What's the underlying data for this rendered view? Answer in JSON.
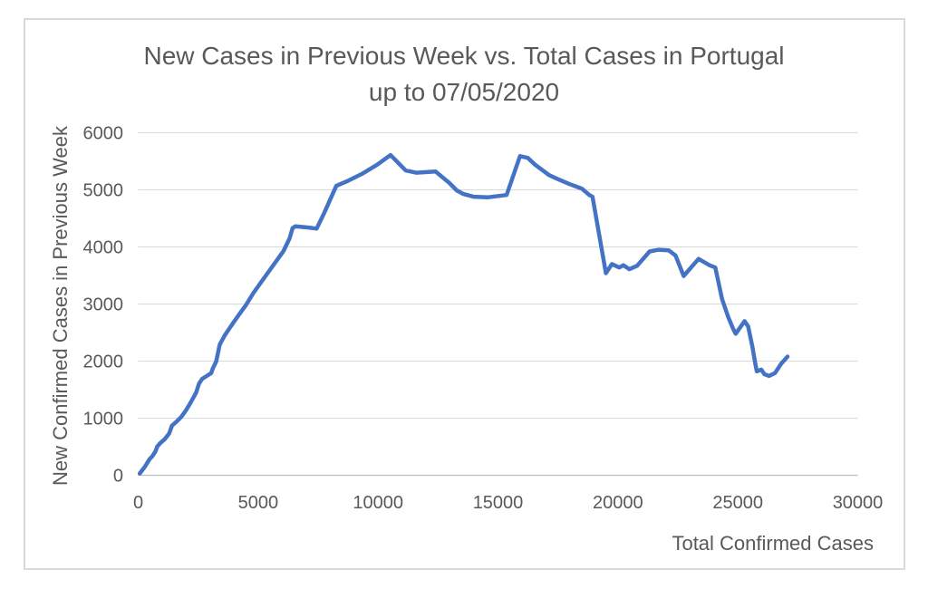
{
  "chart_data": {
    "type": "line",
    "title": "New Cases in Previous Week vs. Total Cases in Portugal",
    "subtitle": "up to 07/05/2020",
    "xlabel": "Total Confirmed Cases",
    "ylabel": "New Confirmed Cases in Previous Week",
    "xlim": [
      0,
      30000
    ],
    "ylim": [
      0,
      6000
    ],
    "xticks": [
      0,
      5000,
      10000,
      15000,
      20000,
      25000,
      30000
    ],
    "yticks": [
      0,
      1000,
      2000,
      3000,
      4000,
      5000,
      6000
    ],
    "grid": "horizontal",
    "legend": "none",
    "colors": {
      "line": "#4472C4",
      "grid": "#D9D9D9",
      "axis": "#BFBFBF",
      "text": "#595959",
      "frame_border": "#D9D9D9"
    },
    "series": [
      {
        "name": "New confirmed cases in previous week",
        "points": [
          [
            60,
            30
          ],
          [
            280,
            150
          ],
          [
            470,
            280
          ],
          [
            600,
            340
          ],
          [
            720,
            420
          ],
          [
            790,
            500
          ],
          [
            910,
            560
          ],
          [
            1100,
            630
          ],
          [
            1290,
            730
          ],
          [
            1410,
            870
          ],
          [
            1600,
            940
          ],
          [
            1790,
            1020
          ],
          [
            1980,
            1130
          ],
          [
            2170,
            1260
          ],
          [
            2420,
            1450
          ],
          [
            2540,
            1610
          ],
          [
            2670,
            1690
          ],
          [
            2860,
            1740
          ],
          [
            3040,
            1790
          ],
          [
            3110,
            1870
          ],
          [
            3250,
            1990
          ],
          [
            3400,
            2290
          ],
          [
            3610,
            2450
          ],
          [
            3860,
            2610
          ],
          [
            4180,
            2800
          ],
          [
            4490,
            2980
          ],
          [
            4800,
            3190
          ],
          [
            5120,
            3380
          ],
          [
            5430,
            3560
          ],
          [
            5750,
            3750
          ],
          [
            6060,
            3930
          ],
          [
            6310,
            4150
          ],
          [
            6440,
            4330
          ],
          [
            6550,
            4360
          ],
          [
            7100,
            4340
          ],
          [
            7440,
            4320
          ],
          [
            7760,
            4600
          ],
          [
            8260,
            5070
          ],
          [
            8700,
            5150
          ],
          [
            9330,
            5280
          ],
          [
            9960,
            5440
          ],
          [
            10520,
            5610
          ],
          [
            11150,
            5340
          ],
          [
            11590,
            5300
          ],
          [
            12400,
            5320
          ],
          [
            12970,
            5120
          ],
          [
            13280,
            4990
          ],
          [
            13540,
            4930
          ],
          [
            13980,
            4880
          ],
          [
            14600,
            4870
          ],
          [
            15360,
            4910
          ],
          [
            15920,
            5590
          ],
          [
            16240,
            5560
          ],
          [
            16550,
            5440
          ],
          [
            16930,
            5320
          ],
          [
            17120,
            5260
          ],
          [
            17430,
            5200
          ],
          [
            17990,
            5100
          ],
          [
            18500,
            5020
          ],
          [
            18810,
            4910
          ],
          [
            18940,
            4880
          ],
          [
            19500,
            3540
          ],
          [
            19750,
            3700
          ],
          [
            20060,
            3640
          ],
          [
            20230,
            3680
          ],
          [
            20480,
            3610
          ],
          [
            20800,
            3670
          ],
          [
            21320,
            3920
          ],
          [
            21700,
            3950
          ],
          [
            22120,
            3940
          ],
          [
            22400,
            3850
          ],
          [
            22740,
            3490
          ],
          [
            23360,
            3790
          ],
          [
            23820,
            3680
          ],
          [
            24060,
            3640
          ],
          [
            24340,
            3090
          ],
          [
            24600,
            2770
          ],
          [
            24790,
            2580
          ],
          [
            24910,
            2480
          ],
          [
            25280,
            2700
          ],
          [
            25430,
            2610
          ],
          [
            25600,
            2270
          ],
          [
            25730,
            1950
          ],
          [
            25790,
            1820
          ],
          [
            25980,
            1850
          ],
          [
            26110,
            1770
          ],
          [
            26300,
            1740
          ],
          [
            26550,
            1790
          ],
          [
            26800,
            1950
          ],
          [
            27070,
            2080
          ]
        ]
      }
    ]
  }
}
